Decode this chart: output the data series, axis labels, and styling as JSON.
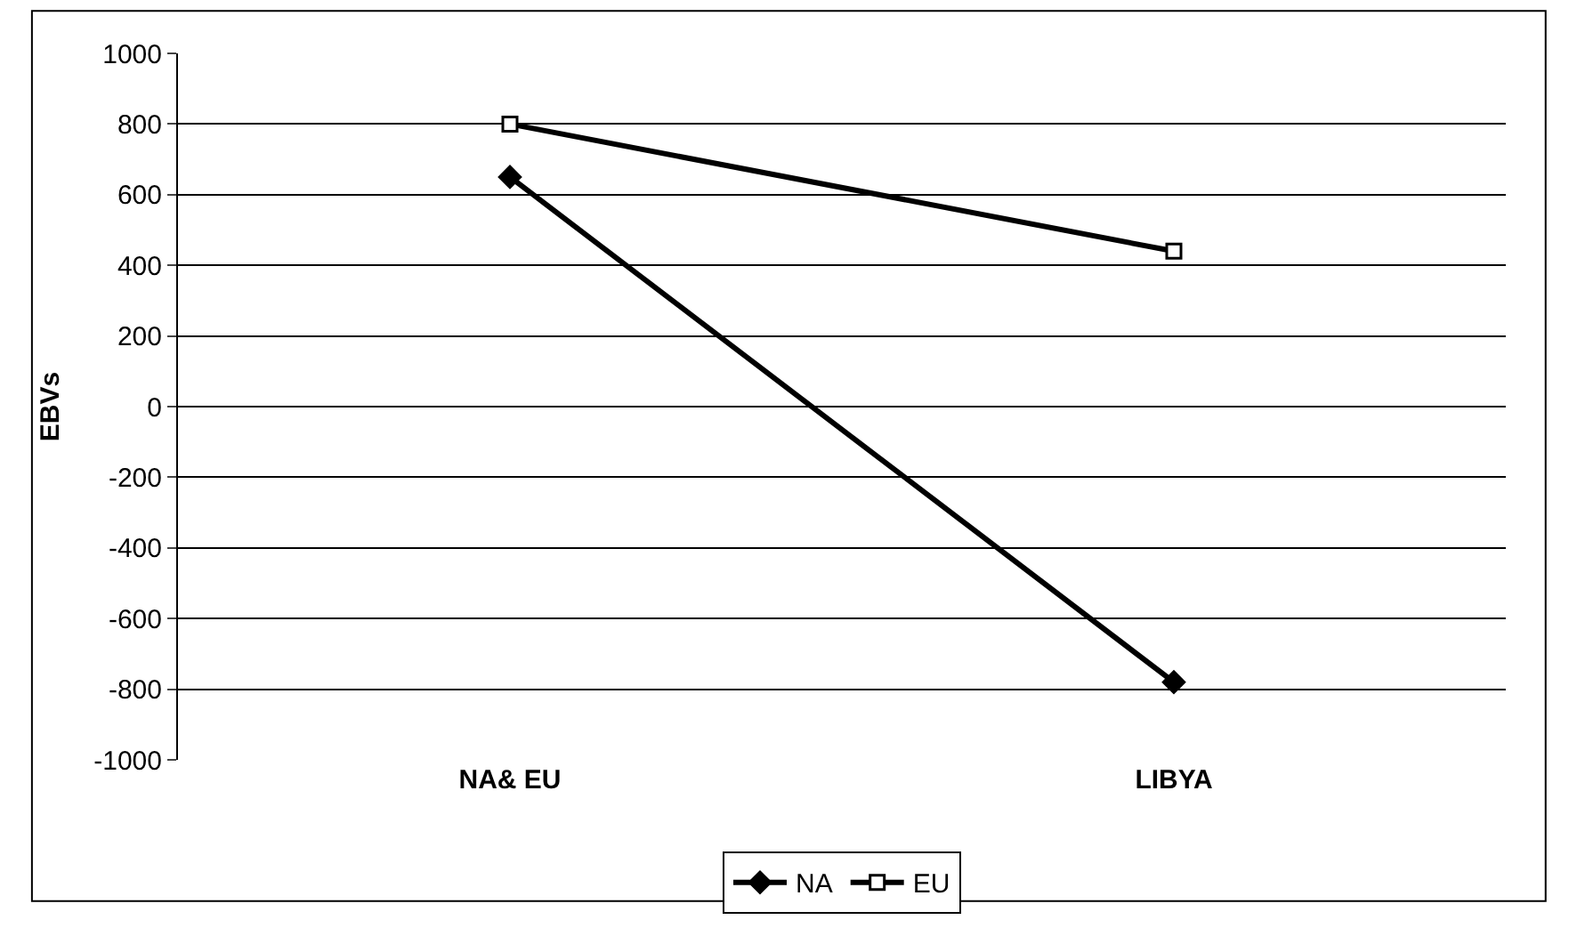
{
  "chart_data": {
    "type": "line",
    "ylabel": "EBVs",
    "categories": [
      "NA& EU",
      "LIBYA"
    ],
    "series": [
      {
        "name": "NA",
        "color": "#000000",
        "marker": "diamond",
        "values": [
          650,
          -780
        ]
      },
      {
        "name": "EU",
        "color": "#000000",
        "marker": "square",
        "values": [
          800,
          440
        ]
      }
    ],
    "ylim": [
      -1000,
      1000
    ],
    "yticks": [
      -1000,
      -800,
      -600,
      -400,
      -200,
      0,
      200,
      400,
      600,
      800,
      1000
    ],
    "grid": "y",
    "legend": "bottom",
    "line_style": "solid"
  }
}
